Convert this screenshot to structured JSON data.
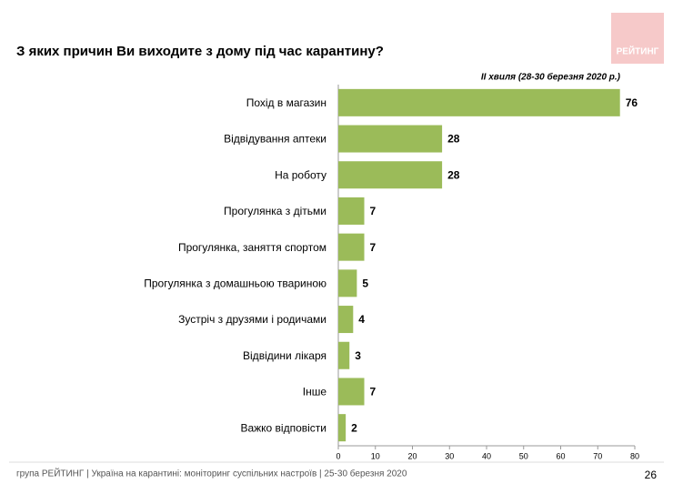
{
  "chart_data": {
    "type": "bar",
    "orientation": "horizontal",
    "title": "З яких причин Ви виходите з дому під час карантину?",
    "subtitle": "II хвиля (28-30 березня 2020 р.)",
    "categories": [
      "Похід в магазин",
      "Відвідування аптеки",
      "На роботу",
      "Прогулянка з дітьми",
      "Прогулянка, заняття спортом",
      "Прогулянка з домашньою твариною",
      "Зустріч з друзями і родичами",
      "Відвідини лікаря",
      "Інше",
      "Важко відповісти"
    ],
    "values": [
      76,
      28,
      28,
      7,
      7,
      5,
      4,
      3,
      7,
      2
    ],
    "color": "#9bbb59",
    "xlim": [
      0,
      80
    ],
    "xticks": [
      0,
      10,
      20,
      30,
      40,
      50,
      60,
      70,
      80
    ]
  },
  "logo": "РЕЙТИНГ",
  "footer": {
    "text": "група РЕЙТИНГ  |  Україна на карантині: моніторинг суспільних настроїв  |  25-30 березня 2020",
    "page": "26"
  }
}
